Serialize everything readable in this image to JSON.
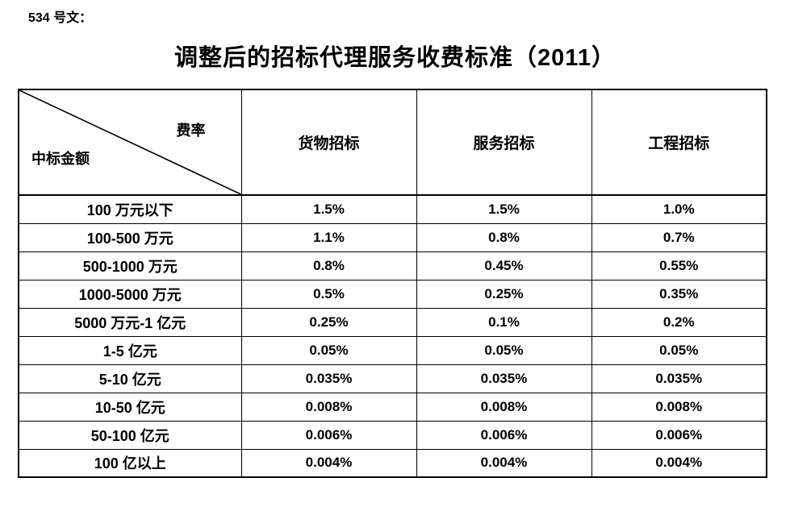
{
  "page": {
    "doc_label": "534 号文：",
    "title": "调整后的招标代理服务收费标准（2011）"
  },
  "table": {
    "corner": {
      "top_right": "费率",
      "bottom_left": "中标金额"
    },
    "columns": [
      "货物招标",
      "服务招标",
      "工程招标"
    ],
    "rows": [
      {
        "label": "100 万元以下",
        "values": [
          "1.5%",
          "1.5%",
          "1.0%"
        ]
      },
      {
        "label": "100-500 万元",
        "values": [
          "1.1%",
          "0.8%",
          "0.7%"
        ]
      },
      {
        "label": "500-1000 万元",
        "values": [
          "0.8%",
          "0.45%",
          "0.55%"
        ]
      },
      {
        "label": "1000-5000 万元",
        "values": [
          "0.5%",
          "0.25%",
          "0.35%"
        ]
      },
      {
        "label": "5000 万元-1 亿元",
        "values": [
          "0.25%",
          "0.1%",
          "0.2%"
        ]
      },
      {
        "label": "1-5 亿元",
        "values": [
          "0.05%",
          "0.05%",
          "0.05%"
        ]
      },
      {
        "label": "5-10 亿元",
        "values": [
          "0.035%",
          "0.035%",
          "0.035%"
        ]
      },
      {
        "label": "10-50 亿元",
        "values": [
          "0.008%",
          "0.008%",
          "0.008%"
        ]
      },
      {
        "label": "50-100 亿元",
        "values": [
          "0.006%",
          "0.006%",
          "0.006%"
        ]
      },
      {
        "label": "100 亿以上",
        "values": [
          "0.004%",
          "0.004%",
          "0.004%"
        ]
      }
    ]
  },
  "colors": {
    "text": "#000000",
    "border": "#000000",
    "background": "#ffffff"
  }
}
